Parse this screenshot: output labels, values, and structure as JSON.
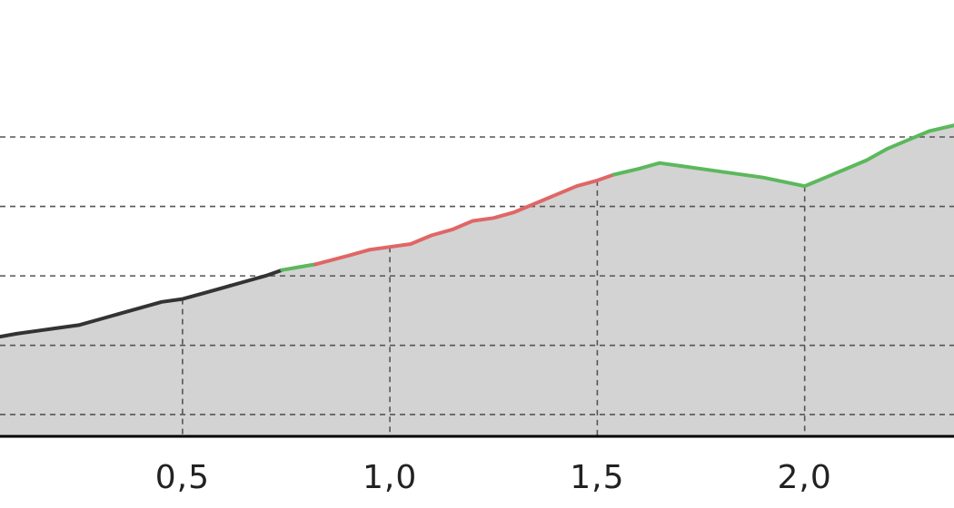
{
  "chart_data": {
    "type": "area",
    "title": "",
    "xlabel": "",
    "ylabel": "",
    "xlim": [
      0.06,
      2.36
    ],
    "ylim": [
      0,
      100
    ],
    "x_ticks": [
      0.5,
      1.0,
      1.5,
      2.0
    ],
    "x_tick_labels": [
      "0,5",
      "1,0",
      "1,5",
      "2,0"
    ],
    "y_grid": [
      4.1,
      28,
      52,
      76,
      100
    ],
    "grid": true,
    "fill_color": "#d3d3d3",
    "series": [
      {
        "color": "#333333",
        "x": [
          0.06,
          0.1,
          0.15,
          0.2,
          0.25,
          0.3,
          0.35,
          0.4,
          0.45,
          0.5,
          0.55,
          0.6,
          0.65,
          0.7,
          0.74
        ],
        "y": [
          31,
          32,
          33,
          34,
          35,
          37,
          39,
          41,
          43,
          44,
          46,
          48,
          50,
          52,
          54
        ]
      },
      {
        "color": "#5cb85c",
        "x": [
          0.74,
          0.78,
          0.82
        ],
        "y": [
          54,
          55,
          56
        ]
      },
      {
        "color": "#e06666",
        "x": [
          0.82,
          0.9,
          0.95,
          1.0,
          1.05,
          1.1,
          1.15,
          1.2,
          1.25,
          1.3,
          1.35,
          1.4,
          1.45,
          1.5,
          1.54
        ],
        "y": [
          56,
          59,
          61,
          62,
          63,
          66,
          68,
          71,
          72,
          74,
          77,
          80,
          83,
          85,
          87
        ]
      },
      {
        "color": "#5cb85c",
        "x": [
          1.54,
          1.6,
          1.65,
          1.7,
          1.8,
          1.9,
          2.0,
          2.05,
          2.1,
          2.15,
          2.2,
          2.25,
          2.3,
          2.36
        ],
        "y": [
          87,
          89,
          91,
          90,
          88,
          86,
          83,
          86,
          89,
          92,
          96,
          99,
          102,
          104
        ]
      }
    ]
  }
}
